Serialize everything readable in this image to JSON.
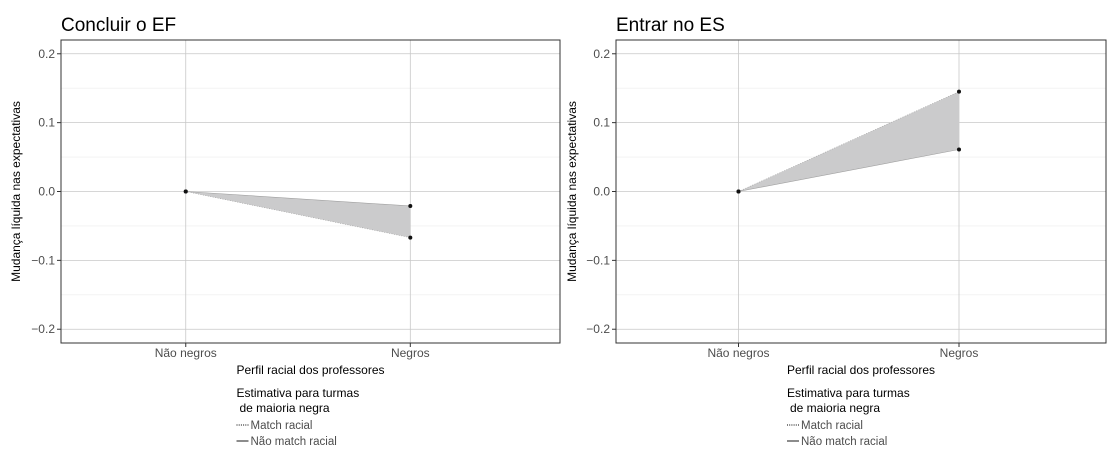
{
  "chart_data": [
    {
      "type": "area",
      "title": "Concluir o EF",
      "xlabel": "Perfil racial dos professores",
      "ylabel": "Mudança líquida nas expectativas",
      "categories": [
        "Não negros",
        "Negros"
      ],
      "ylim": [
        -0.22,
        0.22
      ],
      "yticks": [
        -0.2,
        -0.1,
        0.0,
        0.1,
        0.2
      ],
      "ytick_labels": [
        "−0.2",
        "−0.1",
        "0.0",
        "0.1",
        "0.2"
      ],
      "grid": true,
      "series": [
        {
          "name": "Match racial",
          "linestyle": "dotted",
          "values": [
            0.0,
            -0.067
          ]
        },
        {
          "name": "Não match racial",
          "linestyle": "solid",
          "values": [
            0.0,
            -0.021
          ]
        }
      ],
      "band_color": "#cbcbcc",
      "legend": {
        "title_line1": "Estimativa para turmas",
        "title_line2": "de maioria negra",
        "placement": "bottom"
      }
    },
    {
      "type": "area",
      "title": "Entrar no ES",
      "xlabel": "Perfil racial dos professores",
      "ylabel": "Mudança líquida nas expectativas",
      "categories": [
        "Não negros",
        "Negros"
      ],
      "ylim": [
        -0.22,
        0.22
      ],
      "yticks": [
        -0.2,
        -0.1,
        0.0,
        0.1,
        0.2
      ],
      "ytick_labels": [
        "−0.2",
        "−0.1",
        "0.0",
        "0.1",
        "0.2"
      ],
      "grid": true,
      "series": [
        {
          "name": "Match racial",
          "linestyle": "dotted",
          "values": [
            0.0,
            0.145
          ]
        },
        {
          "name": "Não match racial",
          "linestyle": "solid",
          "values": [
            0.0,
            0.061
          ]
        }
      ],
      "band_color": "#cbcbcc",
      "legend": {
        "title_line1": "Estimativa para turmas",
        "title_line2": "de maioria negra",
        "placement": "bottom"
      }
    }
  ]
}
